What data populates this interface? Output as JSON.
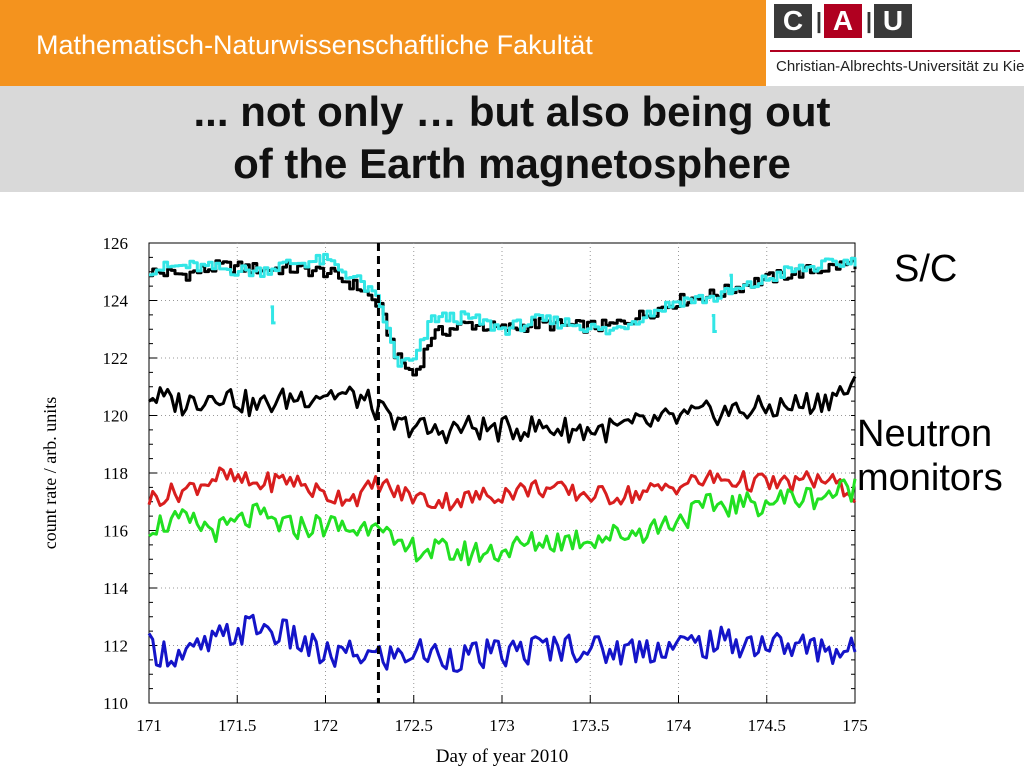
{
  "header": {
    "faculty": "Mathematisch-Naturwissenschaftliche Fakultät",
    "logo_letters": [
      "C",
      "A",
      "U"
    ],
    "university": "Christian-Albrechts-Universität zu Kiel",
    "colors": {
      "orange": "#f4931e",
      "logo_red": "#b00020",
      "logo_dark": "#3a3a3a"
    }
  },
  "slide": {
    "title_line1": "... not only … but also being out",
    "title_line2": "of the Earth magnetosphere"
  },
  "labels": {
    "spacecraft": "S/C",
    "neutron_line1": "Neutron",
    "neutron_line2": "monitors"
  },
  "chart_data": {
    "type": "line",
    "title": "",
    "xlabel": "Day of year 2010",
    "ylabel": "count rate / arb. units",
    "xlim": [
      171,
      175
    ],
    "ylim": [
      110,
      126
    ],
    "xticks": [
      "171",
      "171.5",
      "172",
      "172.5",
      "173",
      "173.5",
      "174",
      "174.5",
      "175"
    ],
    "yticks": [
      "110",
      "112",
      "114",
      "116",
      "118",
      "120",
      "122",
      "124",
      "126"
    ],
    "event_marker_x": 172.3,
    "series": [
      {
        "name": "S/C (black)",
        "color": "#000000",
        "x": [
          171,
          171.2,
          171.4,
          171.6,
          171.8,
          172.0,
          172.2,
          172.3,
          172.4,
          172.5,
          172.6,
          172.8,
          173.0,
          173.2,
          173.4,
          173.6,
          173.8,
          174.0,
          174.2,
          174.4,
          174.6,
          174.8,
          175.0
        ],
        "values": [
          125.0,
          124.9,
          125.2,
          125.1,
          125.1,
          125.0,
          124.4,
          123.8,
          122.0,
          121.4,
          122.8,
          123.2,
          123.0,
          123.2,
          123.1,
          123.1,
          123.5,
          124.0,
          124.2,
          124.6,
          124.9,
          125.1,
          125.3
        ]
      },
      {
        "name": "S/C (cyan)",
        "color": "#33e6e6",
        "x": [
          171,
          171.2,
          171.4,
          171.6,
          171.8,
          172.0,
          172.2,
          172.3,
          172.4,
          172.5,
          172.6,
          172.8,
          173.0,
          173.2,
          173.4,
          173.6,
          173.8,
          174.0,
          174.2,
          174.4,
          174.6,
          174.8,
          175.0
        ],
        "values": [
          125.1,
          125.2,
          125.1,
          125.0,
          125.3,
          125.4,
          124.6,
          123.9,
          121.8,
          121.9,
          123.4,
          123.4,
          123.0,
          123.3,
          123.2,
          122.9,
          123.5,
          124.0,
          124.1,
          124.5,
          125.0,
          125.2,
          125.4
        ]
      },
      {
        "name": "Neutron monitor (black)",
        "color": "#000000",
        "x": [
          171,
          171.2,
          171.4,
          171.6,
          171.8,
          172.0,
          172.2,
          172.3,
          172.4,
          172.5,
          172.6,
          172.8,
          173.0,
          173.2,
          173.4,
          173.6,
          173.8,
          174.0,
          174.2,
          174.4,
          174.6,
          174.8,
          175.0
        ],
        "values": [
          120.7,
          120.4,
          120.8,
          120.3,
          120.6,
          120.8,
          120.6,
          120.2,
          119.6,
          119.7,
          119.4,
          119.6,
          119.5,
          119.6,
          119.5,
          119.5,
          119.7,
          119.9,
          120.1,
          120.2,
          120.3,
          120.5,
          121.0
        ]
      },
      {
        "name": "Neutron monitor (red)",
        "color": "#d81e1e",
        "x": [
          171,
          171.2,
          171.4,
          171.6,
          171.8,
          172.0,
          172.2,
          172.3,
          172.4,
          172.5,
          172.6,
          172.8,
          173.0,
          173.2,
          173.4,
          173.6,
          173.8,
          174.0,
          174.2,
          174.4,
          174.6,
          174.8,
          175.0
        ],
        "values": [
          117.1,
          117.4,
          117.9,
          117.6,
          117.8,
          117.2,
          117.2,
          117.7,
          117.3,
          117.2,
          117.0,
          117.1,
          117.3,
          117.5,
          117.3,
          117.2,
          117.3,
          117.6,
          117.8,
          117.7,
          117.6,
          117.8,
          117.3
        ]
      },
      {
        "name": "Neutron monitor (green)",
        "color": "#22e022",
        "x": [
          171,
          171.2,
          171.4,
          171.6,
          171.8,
          172.0,
          172.2,
          172.3,
          172.4,
          172.5,
          172.6,
          172.8,
          173.0,
          173.2,
          173.4,
          173.6,
          173.8,
          174.0,
          174.2,
          174.4,
          174.6,
          174.8,
          175.0
        ],
        "values": [
          116.2,
          116.3,
          116.0,
          116.5,
          116.1,
          116.2,
          116.0,
          116.6,
          115.2,
          115.4,
          115.3,
          115.2,
          115.3,
          115.6,
          115.7,
          115.8,
          116.0,
          116.4,
          116.9,
          116.9,
          117.1,
          117.2,
          117.5
        ]
      },
      {
        "name": "Neutron monitor (blue)",
        "color": "#1414c8",
        "x": [
          171,
          171.2,
          171.4,
          171.6,
          171.8,
          172.0,
          172.2,
          172.3,
          172.4,
          172.5,
          172.6,
          172.8,
          173.0,
          173.2,
          173.4,
          173.6,
          173.8,
          174.0,
          174.2,
          174.4,
          174.6,
          174.8,
          175.0
        ],
        "values": [
          111.9,
          111.6,
          112.2,
          112.7,
          112.3,
          111.6,
          111.7,
          111.6,
          111.6,
          111.8,
          111.7,
          111.6,
          111.7,
          111.9,
          112.0,
          111.8,
          111.9,
          112.0,
          112.1,
          112.1,
          112.0,
          111.9,
          111.8
        ]
      }
    ],
    "spacecraft_gap_markers": [
      {
        "x": 171.7,
        "y": 123.5,
        "color": "#33e6e6"
      },
      {
        "x": 174.2,
        "y": 123.2,
        "color": "#33e6e6"
      },
      {
        "x": 174.3,
        "y": 124.6,
        "color": "#33e6e6"
      }
    ]
  }
}
